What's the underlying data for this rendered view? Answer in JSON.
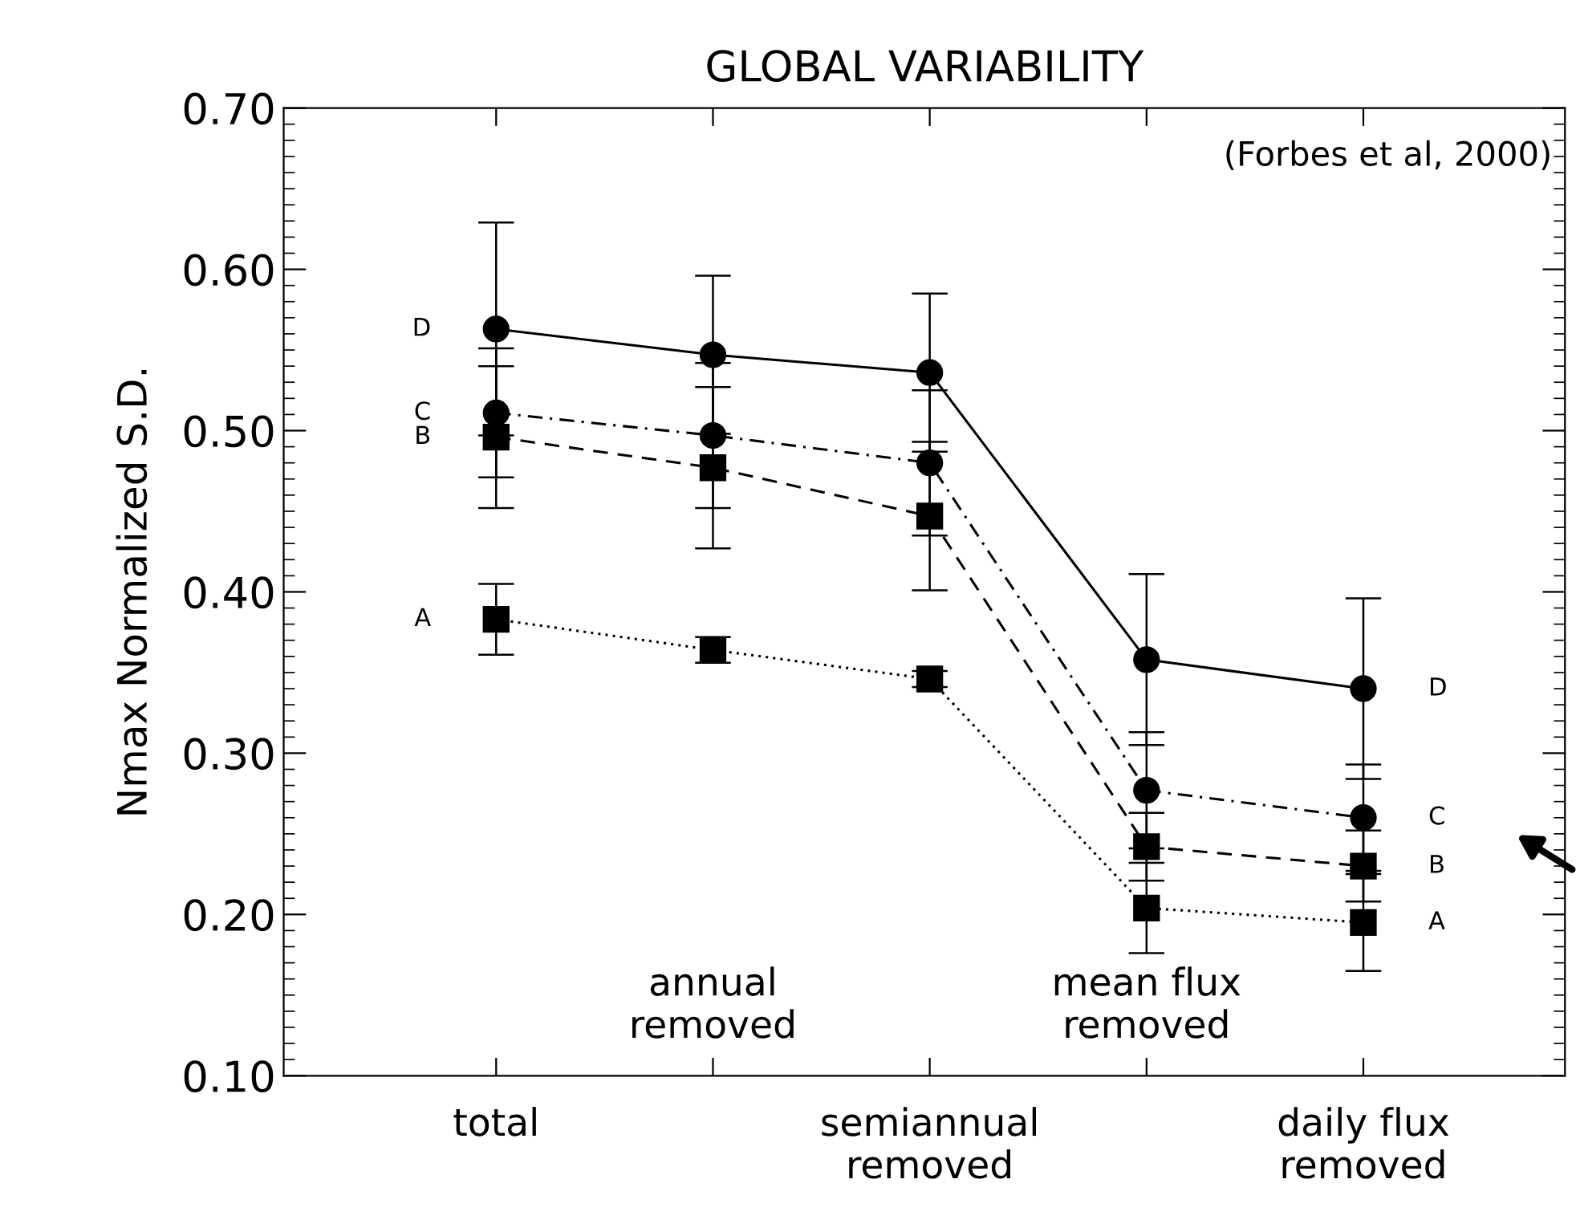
{
  "chart_data": {
    "type": "line",
    "title": "GLOBAL VARIABILITY",
    "ylabel": "Nmax Normalized S.D.",
    "categories": [
      "total",
      "annual\nremoved",
      "semiannual\nremoved",
      "mean flux\nremoved",
      "daily flux\nremoved"
    ],
    "ylim": [
      0.1,
      0.7
    ],
    "yticks": [
      {
        "value": 0.1,
        "label": "0.10"
      },
      {
        "value": 0.2,
        "label": "0.20"
      },
      {
        "value": 0.3,
        "label": "0.30"
      },
      {
        "value": 0.4,
        "label": "0.40"
      },
      {
        "value": 0.5,
        "label": "0.50"
      },
      {
        "value": 0.6,
        "label": "0.60"
      },
      {
        "value": 0.7,
        "label": "0.70"
      }
    ],
    "grid": false,
    "legend": false,
    "series": [
      {
        "name": "A",
        "color": "#000000",
        "marker": "square",
        "line_style": "dotted",
        "values": [
          0.383,
          0.364,
          0.346,
          0.204,
          0.195
        ],
        "errors": [
          0.022,
          0.008,
          0.005,
          0.028,
          0.03
        ]
      },
      {
        "name": "B",
        "color": "#000000",
        "marker": "square",
        "line_style": "dashed",
        "values": [
          0.496,
          0.477,
          0.447,
          0.242,
          0.23
        ],
        "errors": [
          0.044,
          0.05,
          0.046,
          0.021,
          0.022
        ]
      },
      {
        "name": "C",
        "color": "#000000",
        "marker": "circle",
        "line_style": "dashdot",
        "values": [
          0.511,
          0.497,
          0.48,
          0.277,
          0.26
        ],
        "errors": [
          0.04,
          0.045,
          0.045,
          0.036,
          0.033
        ]
      },
      {
        "name": "D",
        "color": "#000000",
        "marker": "circle",
        "line_style": "solid",
        "values": [
          0.563,
          0.547,
          0.536,
          0.358,
          0.34
        ],
        "errors": [
          0.066,
          0.049,
          0.049,
          0.053,
          0.056
        ]
      }
    ],
    "annotations": [
      "(Forbes et al, 2000)"
    ]
  }
}
